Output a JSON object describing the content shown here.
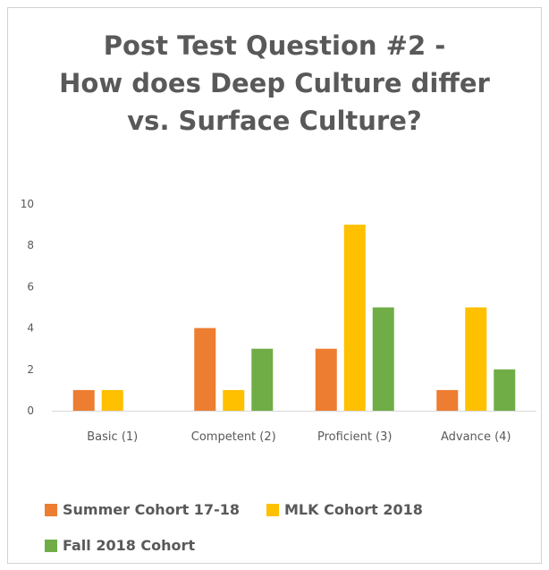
{
  "chart_data": {
    "type": "bar",
    "title_lines": [
      "Post Test Question #2 -",
      "How does Deep Culture differ",
      "vs. Surface Culture?"
    ],
    "categories": [
      "Basic (1)",
      "Competent (2)",
      "Proficient (3)",
      "Advance (4)"
    ],
    "series": [
      {
        "name": "Summer Cohort 17-18",
        "color": "#ED7D31",
        "values": [
          1,
          4,
          3,
          1
        ]
      },
      {
        "name": "MLK Cohort 2018",
        "color": "#FFC000",
        "values": [
          1,
          1,
          9,
          5
        ]
      },
      {
        "name": "Fall 2018 Cohort",
        "color": "#70AD47",
        "values": [
          0,
          3,
          5,
          2
        ]
      }
    ],
    "yticks": [
      0,
      2,
      4,
      6,
      8,
      10
    ],
    "ylim": [
      0,
      10
    ],
    "grid": false,
    "legend": "bottom"
  }
}
